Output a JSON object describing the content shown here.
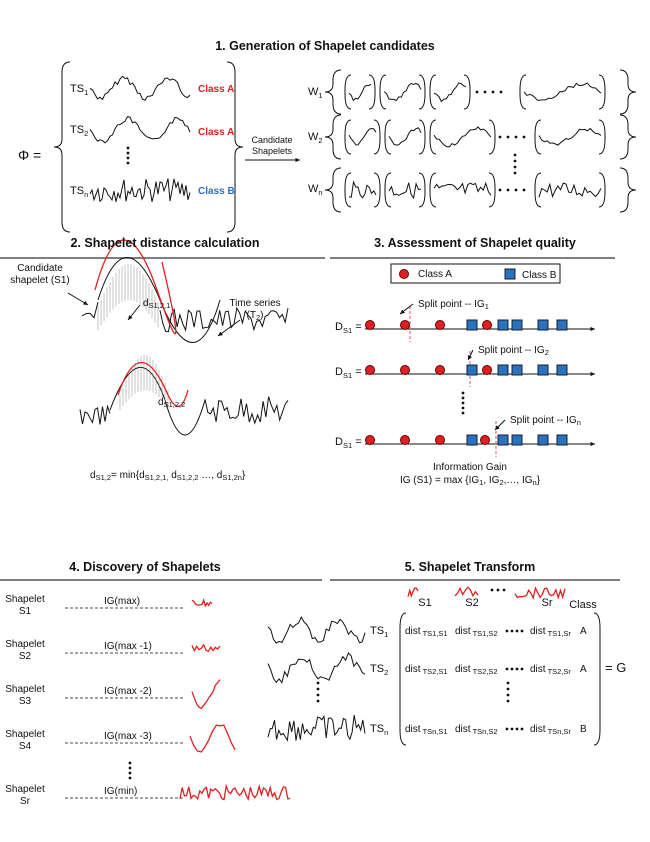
{
  "section1": {
    "title": "1. Generation of Shapelet candidates",
    "phi": "Φ =",
    "series": [
      {
        "label": "TS",
        "sub": "1",
        "class": "Class A"
      },
      {
        "label": "TS",
        "sub": "2",
        "class": "Class A"
      },
      {
        "label": "TS",
        "sub": "n",
        "class": "Class B"
      }
    ],
    "arrow_label_1": "Candidate",
    "arrow_label_2": "Shapelets",
    "windows": [
      {
        "label": "W",
        "sub": "1"
      },
      {
        "label": "W",
        "sub": "2"
      },
      {
        "label": "W",
        "sub": "n"
      }
    ]
  },
  "section2": {
    "title": "2. Shapelet distance calculation",
    "candidate_label_1": "Candidate",
    "candidate_label_2": "shapelet (S1)",
    "d1": "d",
    "d1_sub": "S1,2,1",
    "d2": "d",
    "d2_sub": "S1,2,2",
    "ts_label_1": "Time series",
    "ts_label_2": "(T",
    "ts_label_sub": "2",
    "ts_label_end": ")",
    "formula": {
      "a": "d",
      "a_sub": "S1,2",
      "b": "= min{d",
      "b_sub": "S1,2,1,",
      "c": " d",
      "c_sub": "S1,2,2",
      "d": " …, d",
      "d_sub": "S1,2n",
      "e": "}"
    }
  },
  "section3": {
    "title": "3. Assessment of Shapelet quality",
    "legend": {
      "class_a": "Class A",
      "class_b": "Class B"
    },
    "row_label": "D",
    "row_sub": "S1",
    "row_eq": " =",
    "splits": [
      {
        "text": "Split point --  IG",
        "sub": "1"
      },
      {
        "text": "Split point --  IG",
        "sub": "2"
      },
      {
        "text": "Split point --  IG",
        "sub": "n"
      }
    ],
    "ig_title": "Information Gain",
    "ig_formula": "IG (S1) = max {IG",
    "ig_sub1": "1",
    "ig_mid1": ", IG",
    "ig_sub2": "2",
    "ig_mid2": ",…, IG",
    "ig_subn": "n",
    "ig_end": "}",
    "colors": {
      "class_a": "#e02020",
      "class_b": "#2a72c0"
    }
  },
  "section4": {
    "title": "4. Discovery of Shapelets",
    "rows": [
      {
        "name1": "Shapelet",
        "name2": "S1",
        "ig": "IG(max)"
      },
      {
        "name1": "Shapelet",
        "name2": "S2",
        "ig": "IG(max -1)"
      },
      {
        "name1": "Shapelet",
        "name2": "S3",
        "ig": "IG(max -2)"
      },
      {
        "name1": "Shapelet",
        "name2": "S4",
        "ig": "IG(max -3)"
      },
      {
        "name1": "Shapelet",
        "name2": "Sr",
        "ig": "IG(min)"
      }
    ]
  },
  "section5": {
    "title": "5. Shapelet Transform",
    "cols": [
      "S1",
      "S2",
      "Sr"
    ],
    "class_header": "Class",
    "rows": [
      {
        "ts": "TS",
        "ts_sub": "1",
        "c1": "TS1,S1",
        "c2": "TS1,S2",
        "cr": "TS1,Sr",
        "cls": "A"
      },
      {
        "ts": "TS",
        "ts_sub": "2",
        "c1": "TS2,S1",
        "c2": "TS2,S2",
        "cr": "TS2,Sr",
        "cls": "A"
      },
      {
        "ts": "TS",
        "ts_sub": "n",
        "c1": "TSn,S1",
        "c2": "TSn,S2",
        "cr": "TSn,Sr",
        "cls": "B"
      }
    ],
    "dist": "dist",
    "result": "= G"
  }
}
